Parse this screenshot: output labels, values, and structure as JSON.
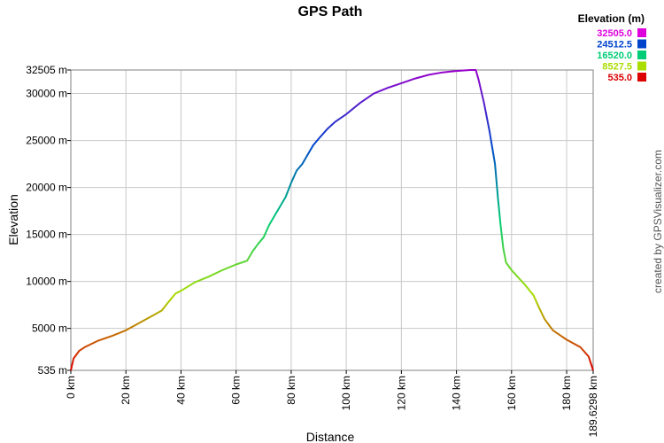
{
  "chart_data": {
    "type": "line",
    "title": "GPS Path",
    "xlabel": "Distance",
    "ylabel": "Elevation",
    "xlim": [
      0,
      189.6298
    ],
    "ylim": [
      535,
      32505
    ],
    "grid": true,
    "x_ticks": [
      {
        "value": 0,
        "label": "0 km"
      },
      {
        "value": 20,
        "label": "20 km"
      },
      {
        "value": 40,
        "label": "40 km"
      },
      {
        "value": 60,
        "label": "60 km"
      },
      {
        "value": 80,
        "label": "80 km"
      },
      {
        "value": 100,
        "label": "100 km"
      },
      {
        "value": 120,
        "label": "120 km"
      },
      {
        "value": 140,
        "label": "140 km"
      },
      {
        "value": 160,
        "label": "160 km"
      },
      {
        "value": 180,
        "label": "180 km"
      },
      {
        "value": 189.6298,
        "label": "189.6298 km"
      }
    ],
    "y_ticks": [
      {
        "value": 535,
        "label": "535 m"
      },
      {
        "value": 5000,
        "label": "5000 m"
      },
      {
        "value": 10000,
        "label": "10000 m"
      },
      {
        "value": 15000,
        "label": "15000 m"
      },
      {
        "value": 20000,
        "label": "20000 m"
      },
      {
        "value": 25000,
        "label": "25000 m"
      },
      {
        "value": 30000,
        "label": "30000 m"
      },
      {
        "value": 32505,
        "label": "32505 m"
      }
    ],
    "legend": {
      "title": "Elevation (m)",
      "placement": "top-right",
      "entries": [
        {
          "label": "32505.0",
          "color": "#dd00dd"
        },
        {
          "label": "24512.5",
          "color": "#0044cc"
        },
        {
          "label": "16520.0",
          "color": "#00cc77"
        },
        {
          "label": "8527.5",
          "color": "#aadd00"
        },
        {
          "label": "535.0",
          "color": "#dd0000"
        }
      ]
    },
    "color_scale": [
      "#dd0000",
      "#aadd00",
      "#00cc77",
      "#0044cc",
      "#dd00dd"
    ],
    "series": [
      {
        "x": [
          0,
          1,
          3,
          5,
          10,
          15,
          20,
          25,
          30,
          33,
          36,
          38,
          40,
          45,
          50,
          55,
          60,
          64,
          66,
          68,
          70,
          72,
          74,
          76,
          78,
          80,
          82,
          84,
          86,
          88,
          90,
          93,
          96,
          100,
          105,
          110,
          115,
          120,
          125,
          130,
          135,
          140,
          145,
          147,
          148,
          150,
          152,
          154,
          155,
          156,
          157,
          158,
          160,
          165,
          168,
          170,
          172,
          175,
          180,
          185,
          188,
          189.6298
        ],
        "y": [
          535,
          1800,
          2600,
          3000,
          3700,
          4200,
          4800,
          5600,
          6400,
          6900,
          8000,
          8700,
          9000,
          9900,
          10500,
          11200,
          11800,
          12200,
          13200,
          14000,
          14700,
          16000,
          17000,
          18000,
          19000,
          20500,
          21800,
          22500,
          23500,
          24500,
          25200,
          26200,
          27000,
          27800,
          29000,
          30000,
          30600,
          31100,
          31600,
          32000,
          32250,
          32400,
          32505,
          32505,
          31500,
          29000,
          26000,
          22500,
          19000,
          16000,
          13500,
          12000,
          11200,
          9600,
          8500,
          7200,
          6000,
          4800,
          3800,
          3000,
          2000,
          535
        ]
      }
    ]
  },
  "credit": "created by GPSVisualizer.com"
}
